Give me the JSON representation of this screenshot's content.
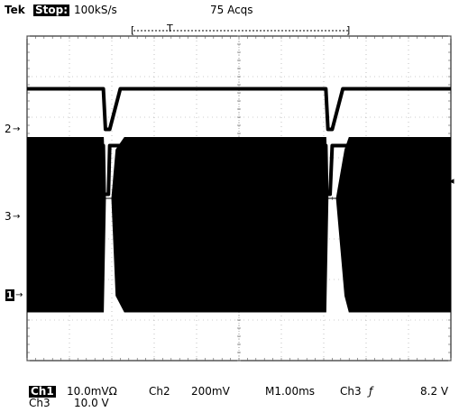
{
  "header": {
    "brand": "Tek",
    "state": "Stop:",
    "rate": "100kS/s",
    "acqs": "75 Acqs",
    "record_bracket_left": "[",
    "trigger_pos_glyph": "T",
    "record_bracket_right": "]"
  },
  "markers": {
    "ch2": "2",
    "ch3": "3",
    "ch1": "1",
    "arrow": "→",
    "trigger_level_glyph": "◂"
  },
  "footer": {
    "ch1_label": "Ch1",
    "ch1_scale": "10.0mVΩ",
    "ch2_label": "Ch2",
    "ch2_scale": "200mV",
    "timebase": "M1.00ms",
    "trig_source": "Ch3",
    "trig_slope_glyph": "ƒ",
    "trig_level": "8.2 V",
    "ch3_label": "Ch3",
    "ch3_scale": "10.0 V"
  },
  "chart_data": {
    "type": "line",
    "grid": true,
    "x_divisions": 10,
    "y_divisions": 8,
    "xlim": [
      0,
      10
    ],
    "ylim": [
      -4,
      4
    ],
    "series": [
      {
        "name": "Ch2",
        "color": "#000000",
        "x": [
          0,
          1.8,
          1.85,
          1.95,
          2.2,
          7.05,
          7.1,
          7.2,
          7.45,
          10
        ],
        "y": [
          2.7,
          2.7,
          1.7,
          1.7,
          2.7,
          2.7,
          1.7,
          1.7,
          2.7,
          2.7
        ]
      },
      {
        "name": "Ch3",
        "color": "#000000",
        "x": [
          0,
          1.8,
          1.82,
          1.92,
          1.95,
          7.05,
          7.07,
          7.15,
          7.2,
          10
        ],
        "y": [
          1.3,
          1.3,
          0.1,
          0.1,
          1.3,
          1.3,
          0.1,
          0.1,
          1.3,
          1.3
        ]
      },
      {
        "name": "Ch1",
        "color": "#000000",
        "envelope": true,
        "x": [
          0,
          1.8,
          1.85,
          2.0,
          2.1,
          2.3,
          7.05,
          7.1,
          7.3,
          7.5,
          7.6,
          10
        ],
        "upper": [
          1.5,
          1.5,
          0.0,
          0.0,
          1.2,
          1.5,
          1.5,
          0.0,
          0.0,
          1.2,
          1.5,
          1.5
        ],
        "lower": [
          -2.8,
          -2.8,
          0.0,
          0.0,
          -2.4,
          -2.8,
          -2.8,
          0.0,
          0.0,
          -2.4,
          -2.8,
          -2.8
        ]
      }
    ]
  }
}
